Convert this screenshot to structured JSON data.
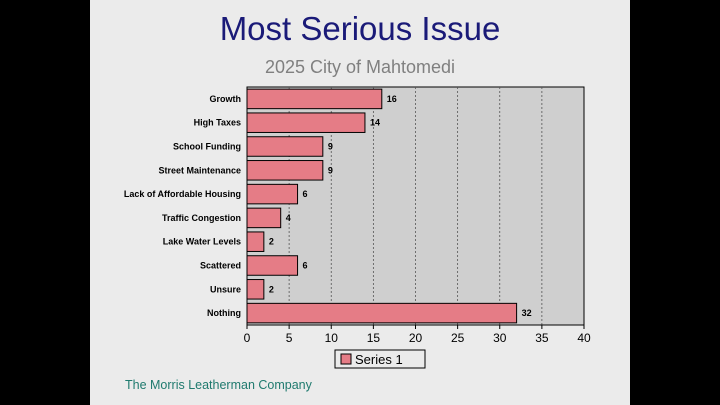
{
  "slide": {
    "title": "Most Serious Issue",
    "subtitle": "2025 City of Mahtomedi",
    "footer": "The Morris Leatherman Company"
  },
  "colors": {
    "bar_fill": "#e57c86",
    "bar_stroke": "#000000",
    "plot_bg": "#cfcfcf",
    "slide_bg": "#ebebeb",
    "title": "#1a1a78",
    "footer": "#1f7a6e"
  },
  "chart_data": {
    "type": "bar",
    "orientation": "horizontal",
    "title": "",
    "categories": [
      "Growth",
      "High Taxes",
      "School Funding",
      "Street Maintenance",
      "Lack of Affordable Housing",
      "Traffic Congestion",
      "Lake Water Levels",
      "Scattered",
      "Unsure",
      "Nothing"
    ],
    "series": [
      {
        "name": "Series 1",
        "values": [
          16,
          14,
          9,
          9,
          6,
          4,
          2,
          6,
          2,
          32
        ]
      }
    ],
    "xlim": [
      0,
      40
    ],
    "xticks": [
      0,
      5,
      10,
      15,
      20,
      25,
      30,
      35,
      40
    ],
    "grid": "vertical dashed",
    "legend": "bottom-center",
    "data_labels": true
  }
}
